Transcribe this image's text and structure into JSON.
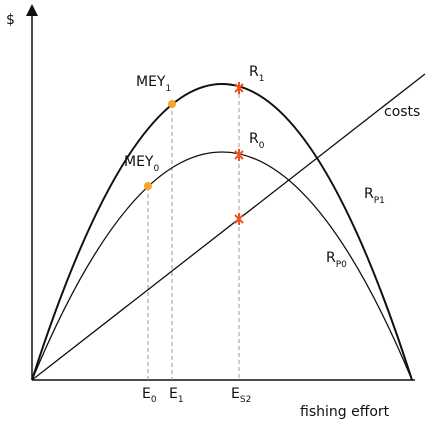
{
  "axes": {
    "y_label": "$",
    "x_label": "fishing effort"
  },
  "points": {
    "mey1": {
      "main": "MEY",
      "sub": "1"
    },
    "mey0": {
      "main": "MEY",
      "sub": "0"
    },
    "r1": {
      "main": "R",
      "sub": "1"
    },
    "r0": {
      "main": "R",
      "sub": "0"
    }
  },
  "curves": {
    "costs": "costs",
    "rp1": {
      "main": "R",
      "sub": "P1"
    },
    "rp0": {
      "main": "R",
      "sub": "P0"
    }
  },
  "efforts": {
    "e0": {
      "main": "E",
      "sub": "0"
    },
    "e1": {
      "main": "E",
      "sub": "1"
    },
    "es2": {
      "main": "E",
      "sub": "S2"
    }
  }
}
